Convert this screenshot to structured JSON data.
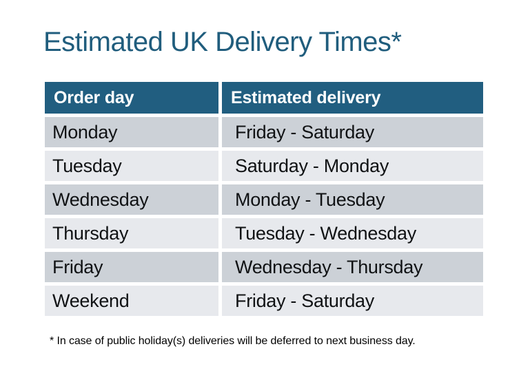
{
  "title": "Estimated UK Delivery Times*",
  "table": {
    "columns": [
      "Order day",
      "Estimated delivery"
    ],
    "rows": [
      {
        "order_day": "Monday",
        "estimated_delivery": "Friday - Saturday"
      },
      {
        "order_day": "Tuesday",
        "estimated_delivery": "Saturday - Monday"
      },
      {
        "order_day": "Wednesday",
        "estimated_delivery": "Monday - Tuesday"
      },
      {
        "order_day": "Thursday",
        "estimated_delivery": "Tuesday - Wednesday"
      },
      {
        "order_day": "Friday",
        "estimated_delivery": "Wednesday - Thursday"
      },
      {
        "order_day": "Weekend",
        "estimated_delivery": "Friday - Saturday"
      }
    ]
  },
  "footnote": "* In case of public holiday(s) deliveries will be deferred to next business day.",
  "colors": {
    "header_bg": "#215e80",
    "title_text": "#205d7d",
    "row_dark_bg": "#ccd1d7",
    "row_light_bg": "#e7e9ed",
    "header_text": "#ffffff",
    "body_text": "#101214",
    "page_bg": "#ffffff"
  }
}
